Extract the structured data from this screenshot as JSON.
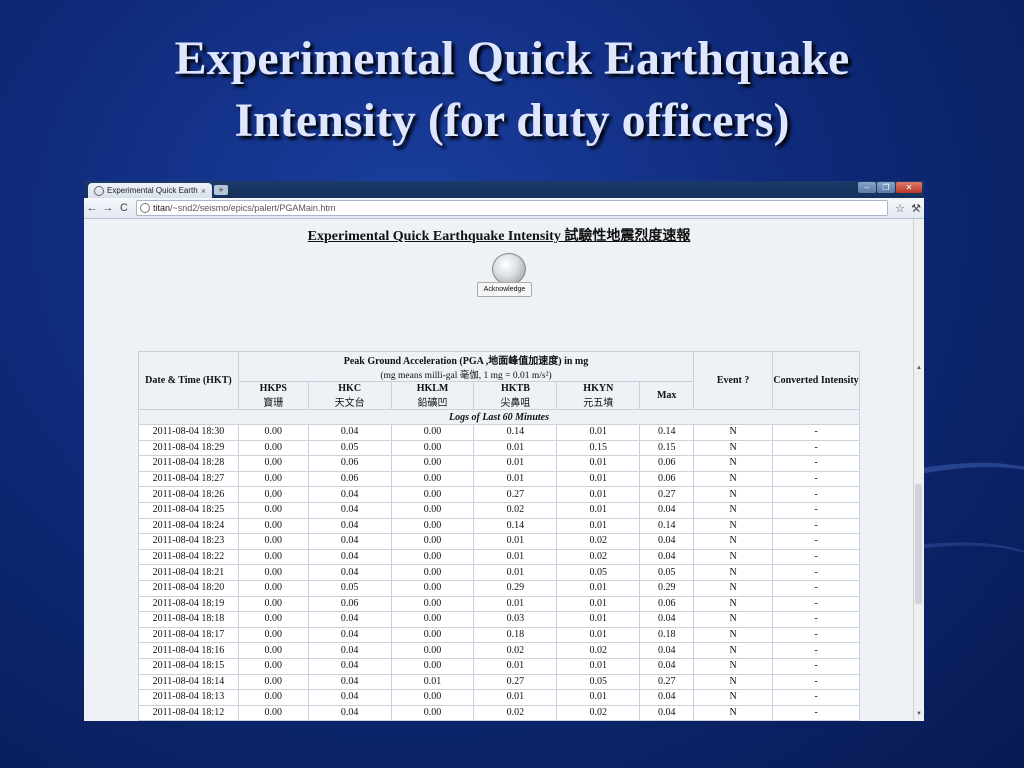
{
  "slide": {
    "title_line1": "Experimental Quick Earthquake",
    "title_line2": "Intensity (for duty officers)"
  },
  "browser": {
    "tab_title": "Experimental Quick Earth",
    "tab_close": "×",
    "new_tab": "+",
    "window_buttons": [
      "–",
      "❐",
      "✕"
    ],
    "url_host": "titan",
    "url_path": "/~snd2/seismo/epics/palert/PGAMain.htm",
    "nav": {
      "back": "←",
      "forward": "→",
      "reload": "C"
    },
    "star_icon": "☆",
    "wrench_icon": "🔧"
  },
  "page": {
    "heading": "Experimental Quick Earthquake Intensity 試驗性地震烈度速報",
    "acknowledge_label": "Acknowledge"
  },
  "table": {
    "date_header": "Date & Time (HKT)",
    "pga_title": "Peak Ground Acceleration (PGA ,地面峰值加速度) in mg",
    "pga_subtitle": "(mg means milli-gal 毫伽, 1 mg = 0.01 m/s²)",
    "event_header": "Event ?",
    "converted_header": "Converted Intensity",
    "stations": [
      {
        "code": "HKPS",
        "name": "寶珊"
      },
      {
        "code": "HKC",
        "name": "天文台"
      },
      {
        "code": "HKLM",
        "name": "鉛礦凹"
      },
      {
        "code": "HKTB",
        "name": "尖鼻咀"
      },
      {
        "code": "HKYN",
        "name": "元五墳"
      }
    ],
    "max_header": "Max",
    "logs_label": "Logs of Last 60 Minutes",
    "rows": [
      [
        "2011-08-04 18:30",
        "0.00",
        "0.04",
        "0.00",
        "0.14",
        "0.01",
        "0.14",
        "N",
        "-"
      ],
      [
        "2011-08-04 18:29",
        "0.00",
        "0.05",
        "0.00",
        "0.01",
        "0.15",
        "0.15",
        "N",
        "-"
      ],
      [
        "2011-08-04 18:28",
        "0.00",
        "0.06",
        "0.00",
        "0.01",
        "0.01",
        "0.06",
        "N",
        "-"
      ],
      [
        "2011-08-04 18:27",
        "0.00",
        "0.06",
        "0.00",
        "0.01",
        "0.01",
        "0.06",
        "N",
        "-"
      ],
      [
        "2011-08-04 18:26",
        "0.00",
        "0.04",
        "0.00",
        "0.27",
        "0.01",
        "0.27",
        "N",
        "-"
      ],
      [
        "2011-08-04 18:25",
        "0.00",
        "0.04",
        "0.00",
        "0.02",
        "0.01",
        "0.04",
        "N",
        "-"
      ],
      [
        "2011-08-04 18:24",
        "0.00",
        "0.04",
        "0.00",
        "0.14",
        "0.01",
        "0.14",
        "N",
        "-"
      ],
      [
        "2011-08-04 18:23",
        "0.00",
        "0.04",
        "0.00",
        "0.01",
        "0.02",
        "0.04",
        "N",
        "-"
      ],
      [
        "2011-08-04 18:22",
        "0.00",
        "0.04",
        "0.00",
        "0.01",
        "0.02",
        "0.04",
        "N",
        "-"
      ],
      [
        "2011-08-04 18:21",
        "0.00",
        "0.04",
        "0.00",
        "0.01",
        "0.05",
        "0.05",
        "N",
        "-"
      ],
      [
        "2011-08-04 18:20",
        "0.00",
        "0.05",
        "0.00",
        "0.29",
        "0.01",
        "0.29",
        "N",
        "-"
      ],
      [
        "2011-08-04 18:19",
        "0.00",
        "0.06",
        "0.00",
        "0.01",
        "0.01",
        "0.06",
        "N",
        "-"
      ],
      [
        "2011-08-04 18:18",
        "0.00",
        "0.04",
        "0.00",
        "0.03",
        "0.01",
        "0.04",
        "N",
        "-"
      ],
      [
        "2011-08-04 18:17",
        "0.00",
        "0.04",
        "0.00",
        "0.18",
        "0.01",
        "0.18",
        "N",
        "-"
      ],
      [
        "2011-08-04 18:16",
        "0.00",
        "0.04",
        "0.00",
        "0.02",
        "0.02",
        "0.04",
        "N",
        "-"
      ],
      [
        "2011-08-04 18:15",
        "0.00",
        "0.04",
        "0.00",
        "0.01",
        "0.01",
        "0.04",
        "N",
        "-"
      ],
      [
        "2011-08-04 18:14",
        "0.00",
        "0.04",
        "0.01",
        "0.27",
        "0.05",
        "0.27",
        "N",
        "-"
      ],
      [
        "2011-08-04 18:13",
        "0.00",
        "0.04",
        "0.00",
        "0.01",
        "0.01",
        "0.04",
        "N",
        "-"
      ],
      [
        "2011-08-04 18:12",
        "0.00",
        "0.04",
        "0.00",
        "0.02",
        "0.02",
        "0.04",
        "N",
        "-"
      ]
    ]
  }
}
